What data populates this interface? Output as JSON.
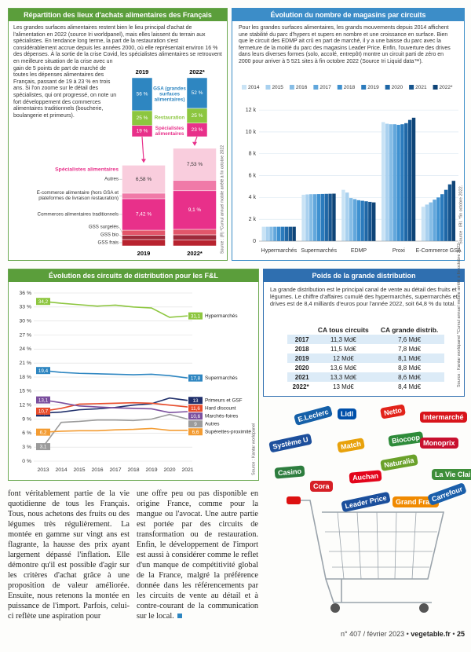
{
  "chart_data": [
    {
      "type": "bar",
      "stacked": true,
      "title": "Répartition des lieux d'achats alimentaires des Français",
      "description": "Les grandes surfaces alimentaires restent bien le lieu principal d'achat de l'alimentation en 2022 (source Iri worldpanel), mais elles laissent du terrain aux spécialistes. En tendance long terme, la part de la restauration s'est considérablement accrue depuis les années 2000, où elle représentait environ 16 % des dépenses. À la sortie de la crise Covid, les spécialistes alimentaires se retrouvent en meilleure situation de la crise avec un gain de 5 points de part de marché de toutes les dépenses alimentaires des Français, passant de 19 à 23 % en trois ans. Si l'on zoome sur le détail des spécialistes, qui ont progressé, on note un fort développement des commerces alimentaires traditionnels (boucherie, boulangerie et primeurs).",
      "categories": [
        "2019",
        "2022*"
      ],
      "series": [
        {
          "name": "GSA (grandes surfaces alimentaires)",
          "color": "#2e86c1",
          "label_color": "#ffffff",
          "values": [
            56,
            52
          ],
          "value_labels": [
            "56 %",
            "52 %"
          ]
        },
        {
          "name": "Restauration",
          "color": "#8cc63f",
          "label_color": "#ffffff",
          "values": [
            25,
            25
          ],
          "value_labels": [
            "25 %",
            "25 %"
          ]
        },
        {
          "name": "Spécialistes alimentaires",
          "color": "#e8308a",
          "label_color": "#ffffff",
          "values": [
            19,
            23
          ],
          "value_labels": [
            "19 %",
            "23 %"
          ]
        }
      ]
    },
    {
      "type": "bar",
      "stacked": true,
      "legend_title": "Spécialistes alimentaires",
      "source": "Source : (R) *Cumul annuel mobile arrêté à fin octobre 2022",
      "categories": [
        "2019",
        "2022*"
      ],
      "series": [
        {
          "name": "GSS frais",
          "color": "#b8232f",
          "values": [
            1.5,
            1.4
          ]
        },
        {
          "name": "GSS bio",
          "color": "#9e2a3a",
          "values": [
            1.0,
            1.2
          ]
        },
        {
          "name": "GSS surgelés",
          "color": "#e2566a",
          "values": [
            1.2,
            1.3
          ]
        },
        {
          "name": "Commerces alimentaires traditionnels",
          "color": "#e8308a",
          "label_color": "#ffffff",
          "values": [
            7.42,
            9.1
          ],
          "value_labels": [
            "7,42 %",
            "9,1 %"
          ]
        },
        {
          "name": "E-commerce alimentaire (hors GSA et plateformes de livraison restauration)",
          "color": "#f07aa8",
          "values": [
            1.3,
            2.47
          ]
        },
        {
          "name": "Autres",
          "color": "#f9cddd",
          "label_color": "#333333",
          "values": [
            6.58,
            7.53
          ],
          "value_labels": [
            "6,58 %",
            "7,53 %"
          ]
        }
      ]
    },
    {
      "type": "bar",
      "title": "Évolution du nombre de magasins par circuits",
      "description": "Pour les grandes surfaces alimentaires, les grands mouvements depuis 2014 affichent une stabilité du parc d'hypers et supers en nombre et une croissance en surface. Bien que le circuit des EDMP ait crû en part de marché, il y a une baisse du parc avec la fermeture de la moitié du parc des magasins Leader Price. Enfin, l'ouverture des drives dans leurs diverses formes (solo, accolé, entrepôt) montre un circuit parti de zéro en 2000 pour arriver à 5 521 sites à fin octobre 2022 (Source Iri Liquid data™).",
      "source": "Source : IRI. *fin octobre 2022.",
      "categories": [
        "Hypermarchés",
        "Supermarchés",
        "EDMP",
        "Proxi",
        "E-Commerce GSA"
      ],
      "ylim": [
        0,
        12800
      ],
      "yticks": [
        0,
        {
          "value": 2000,
          "label": "2 k"
        },
        {
          "value": 4000,
          "label": "4 k"
        },
        {
          "value": 6000,
          "label": "6 k"
        },
        {
          "value": 8000,
          "label": "8 k"
        },
        {
          "value": 10000,
          "label": "10 k"
        },
        {
          "value": 12000,
          "label": "12 k"
        }
      ],
      "grid": true,
      "series": [
        {
          "name": "2014",
          "color": "#c9e3f5",
          "values": [
            1320,
            4250,
            4700,
            10900,
            3150
          ]
        },
        {
          "name": "2015",
          "color": "#a9d1ef",
          "values": [
            1320,
            4280,
            4450,
            10750,
            3350
          ]
        },
        {
          "name": "2016",
          "color": "#86bde6",
          "values": [
            1320,
            4300,
            3950,
            10700,
            3550
          ]
        },
        {
          "name": "2017",
          "color": "#62a7dc",
          "values": [
            1320,
            4300,
            3850,
            10700,
            3800
          ]
        },
        {
          "name": "2018",
          "color": "#3f91d0",
          "values": [
            1320,
            4310,
            3750,
            10650,
            4000
          ]
        },
        {
          "name": "2019",
          "color": "#2b7bbd",
          "values": [
            1320,
            4320,
            3700,
            10700,
            4300
          ]
        },
        {
          "name": "2020",
          "color": "#1f67a6",
          "values": [
            1320,
            4330,
            3650,
            10800,
            4700
          ]
        },
        {
          "name": "2021",
          "color": "#17558e",
          "values": [
            1320,
            4340,
            3600,
            11100,
            5200
          ]
        },
        {
          "name": "2022*",
          "color": "#0e4477",
          "values": [
            1320,
            4350,
            3550,
            11300,
            5521
          ]
        }
      ]
    },
    {
      "type": "line",
      "title": "Évolution des circuits de distribution pour les F&L",
      "source": "Source : Kantar worldpanel",
      "categories": [
        "2013",
        "2014",
        "2015",
        "2016",
        "2017",
        "2018",
        "2019",
        "2020",
        "2021"
      ],
      "ylim": [
        0,
        36
      ],
      "yticks": [
        {
          "value": 0,
          "label": "0 %"
        },
        {
          "value": 3,
          "label": "3 %"
        },
        {
          "value": 6,
          "label": "6 %"
        },
        {
          "value": 9,
          "label": "9 %"
        },
        {
          "value": 12,
          "label": "12 %"
        },
        {
          "value": 15,
          "label": "15 %"
        },
        {
          "value": 18,
          "label": "18 %"
        },
        {
          "value": 21,
          "label": "21 %"
        },
        {
          "value": 24,
          "label": "24 %"
        },
        {
          "value": 27,
          "label": "27 %"
        },
        {
          "value": 30,
          "label": "30 %"
        },
        {
          "value": 33,
          "label": "33 %"
        },
        {
          "value": 36,
          "label": "36 %"
        }
      ],
      "grid": true,
      "series": [
        {
          "name": "Hypermarchés",
          "color": "#8dc63f",
          "values": [
            34.2,
            33.8,
            33.5,
            33.2,
            33.4,
            33.0,
            32.8,
            30.8,
            31.1
          ],
          "value_labels": [
            "34,2",
            null,
            null,
            null,
            null,
            null,
            null,
            null,
            "31,1"
          ]
        },
        {
          "name": "Supermarchés",
          "color": "#2e86c1",
          "values": [
            19.4,
            19.0,
            18.8,
            18.7,
            18.6,
            18.5,
            18.6,
            18.3,
            17.8
          ],
          "value_labels": [
            "19,4",
            null,
            null,
            null,
            null,
            null,
            null,
            null,
            "17,8"
          ]
        },
        {
          "name": "Primeurs et GSF",
          "color": "#1f2f6b",
          "values": [
            10.3,
            10.5,
            11.0,
            11.2,
            11.5,
            12.0,
            12.3,
            13.5,
            13
          ],
          "value_labels": [
            "10,3",
            null,
            null,
            null,
            null,
            null,
            null,
            null,
            "13"
          ]
        },
        {
          "name": "Hard discount",
          "color": "#e84c2b",
          "values": [
            10.7,
            11.3,
            12.2,
            12.3,
            12.4,
            12.5,
            12.4,
            12.0,
            11.6
          ],
          "value_labels": [
            "10,7",
            null,
            null,
            null,
            null,
            null,
            null,
            null,
            "11,6"
          ]
        },
        {
          "name": "Marchés-foires",
          "color": "#7b4f9e",
          "values": [
            13.1,
            12.5,
            11.8,
            11.6,
            11.4,
            11.3,
            11.2,
            10.4,
            10.6
          ],
          "value_labels": [
            "13,1",
            null,
            null,
            null,
            null,
            null,
            null,
            null,
            "10,6"
          ]
        },
        {
          "name": "Autres",
          "color": "#9b9b9b",
          "values": [
            3.1,
            8.3,
            8.5,
            8.8,
            8.8,
            8.7,
            9.0,
            10.0,
            9
          ],
          "value_labels": [
            "3,1",
            null,
            null,
            null,
            null,
            null,
            null,
            null,
            "9"
          ]
        },
        {
          "name": "Supérettes-proximité",
          "color": "#f39c33",
          "values": [
            6.2,
            6.4,
            6.5,
            6.5,
            6.7,
            6.8,
            7.0,
            6.6,
            6.6
          ],
          "value_labels": [
            "6,2",
            null,
            null,
            null,
            null,
            null,
            null,
            null,
            "6,6"
          ]
        }
      ]
    }
  ],
  "table": {
    "title": "Poids de la grande distribution",
    "description": "La grande distribution est le principal canal de vente au détail des fruits et légumes. Le chiffre d'affaires cumulé des hypermarchés, supermarchés et drives est de 8,4 milliards d'euros pour l'année 2022, soit 64,8 % du total.",
    "columns": [
      "CA tous circuits",
      "CA grande distrib."
    ],
    "rows": [
      [
        "2017",
        "11,3 Md€",
        "7,6 Md€"
      ],
      [
        "2018",
        "11,5 Md€",
        "7,8 Md€"
      ],
      [
        "2019",
        "12 Md€",
        "8,1 Md€"
      ],
      [
        "2020",
        "13,6 Md€",
        "8,8 Md€"
      ],
      [
        "2021",
        "13,3 Md€",
        "8,6 Md€"
      ],
      [
        "2022*",
        "13 Md€",
        "8,4 Md€"
      ]
    ],
    "source": "Source : Kantar worldpanel *Cumul annuel mobile arrêté à fin octobre 2022"
  },
  "logos": [
    {
      "name": "E.Leclerc",
      "color": "#1560a8"
    },
    {
      "name": "Lidl",
      "color": "#0050aa"
    },
    {
      "name": "Netto",
      "color": "#e2231a"
    },
    {
      "name": "Intermarché",
      "color": "#d8141b"
    },
    {
      "name": "Système U",
      "color": "#1d4f9c"
    },
    {
      "name": "Match",
      "color": "#e8a20c"
    },
    {
      "name": "Biocoop",
      "color": "#2e8b3a"
    },
    {
      "name": "Monoprix",
      "color": "#c8102e"
    },
    {
      "name": "Naturalia",
      "color": "#6aa12a"
    },
    {
      "name": "Casino",
      "color": "#2d7d3e"
    },
    {
      "name": "Auchan",
      "color": "#e3051b"
    },
    {
      "name": "La Vie Claire",
      "color": "#3e8e3a"
    },
    {
      "name": "Leader Price",
      "color": "#1b4f9c"
    },
    {
      "name": "Grand Frais",
      "color": "#f08a00"
    },
    {
      "name": "Carrefour",
      "color": "#1b5faa"
    },
    {
      "name": "Cora",
      "color": "#d61f26"
    }
  ],
  "article": {
    "columns": [
      "font véritablement partie de la vie quotidienne de tous les Français. Tous, nous achetons des fruits ou des légumes très régulièrement. La montée en gamme sur vingt ans est flagrante, la hausse des prix ayant largement dépassé l'inflation. Elle démontre qu'il est possible d'agir sur les critères d'achat grâce à une proposition de valeur améliorée. Ensuite, nous retenons la montée en puissance de l'import. Parfois, celui-ci reflète une aspiration pour",
      "une offre peu ou pas disponible en origine France, comme pour la mangue ou l'avocat. Une autre partie est portée par des circuits de transformation ou de restauration. Enfin, le développement de l'import est aussi à considérer comme le reflet d'un manque de compétitivité global de la France, malgré la préférence donnée dans les référencements par les circuits de vente au détail et à contre-courant de la communication sur le local."
    ]
  },
  "footer": {
    "issue": "n° 407 / février 2023",
    "site": "vegetable.fr",
    "page": "25"
  }
}
